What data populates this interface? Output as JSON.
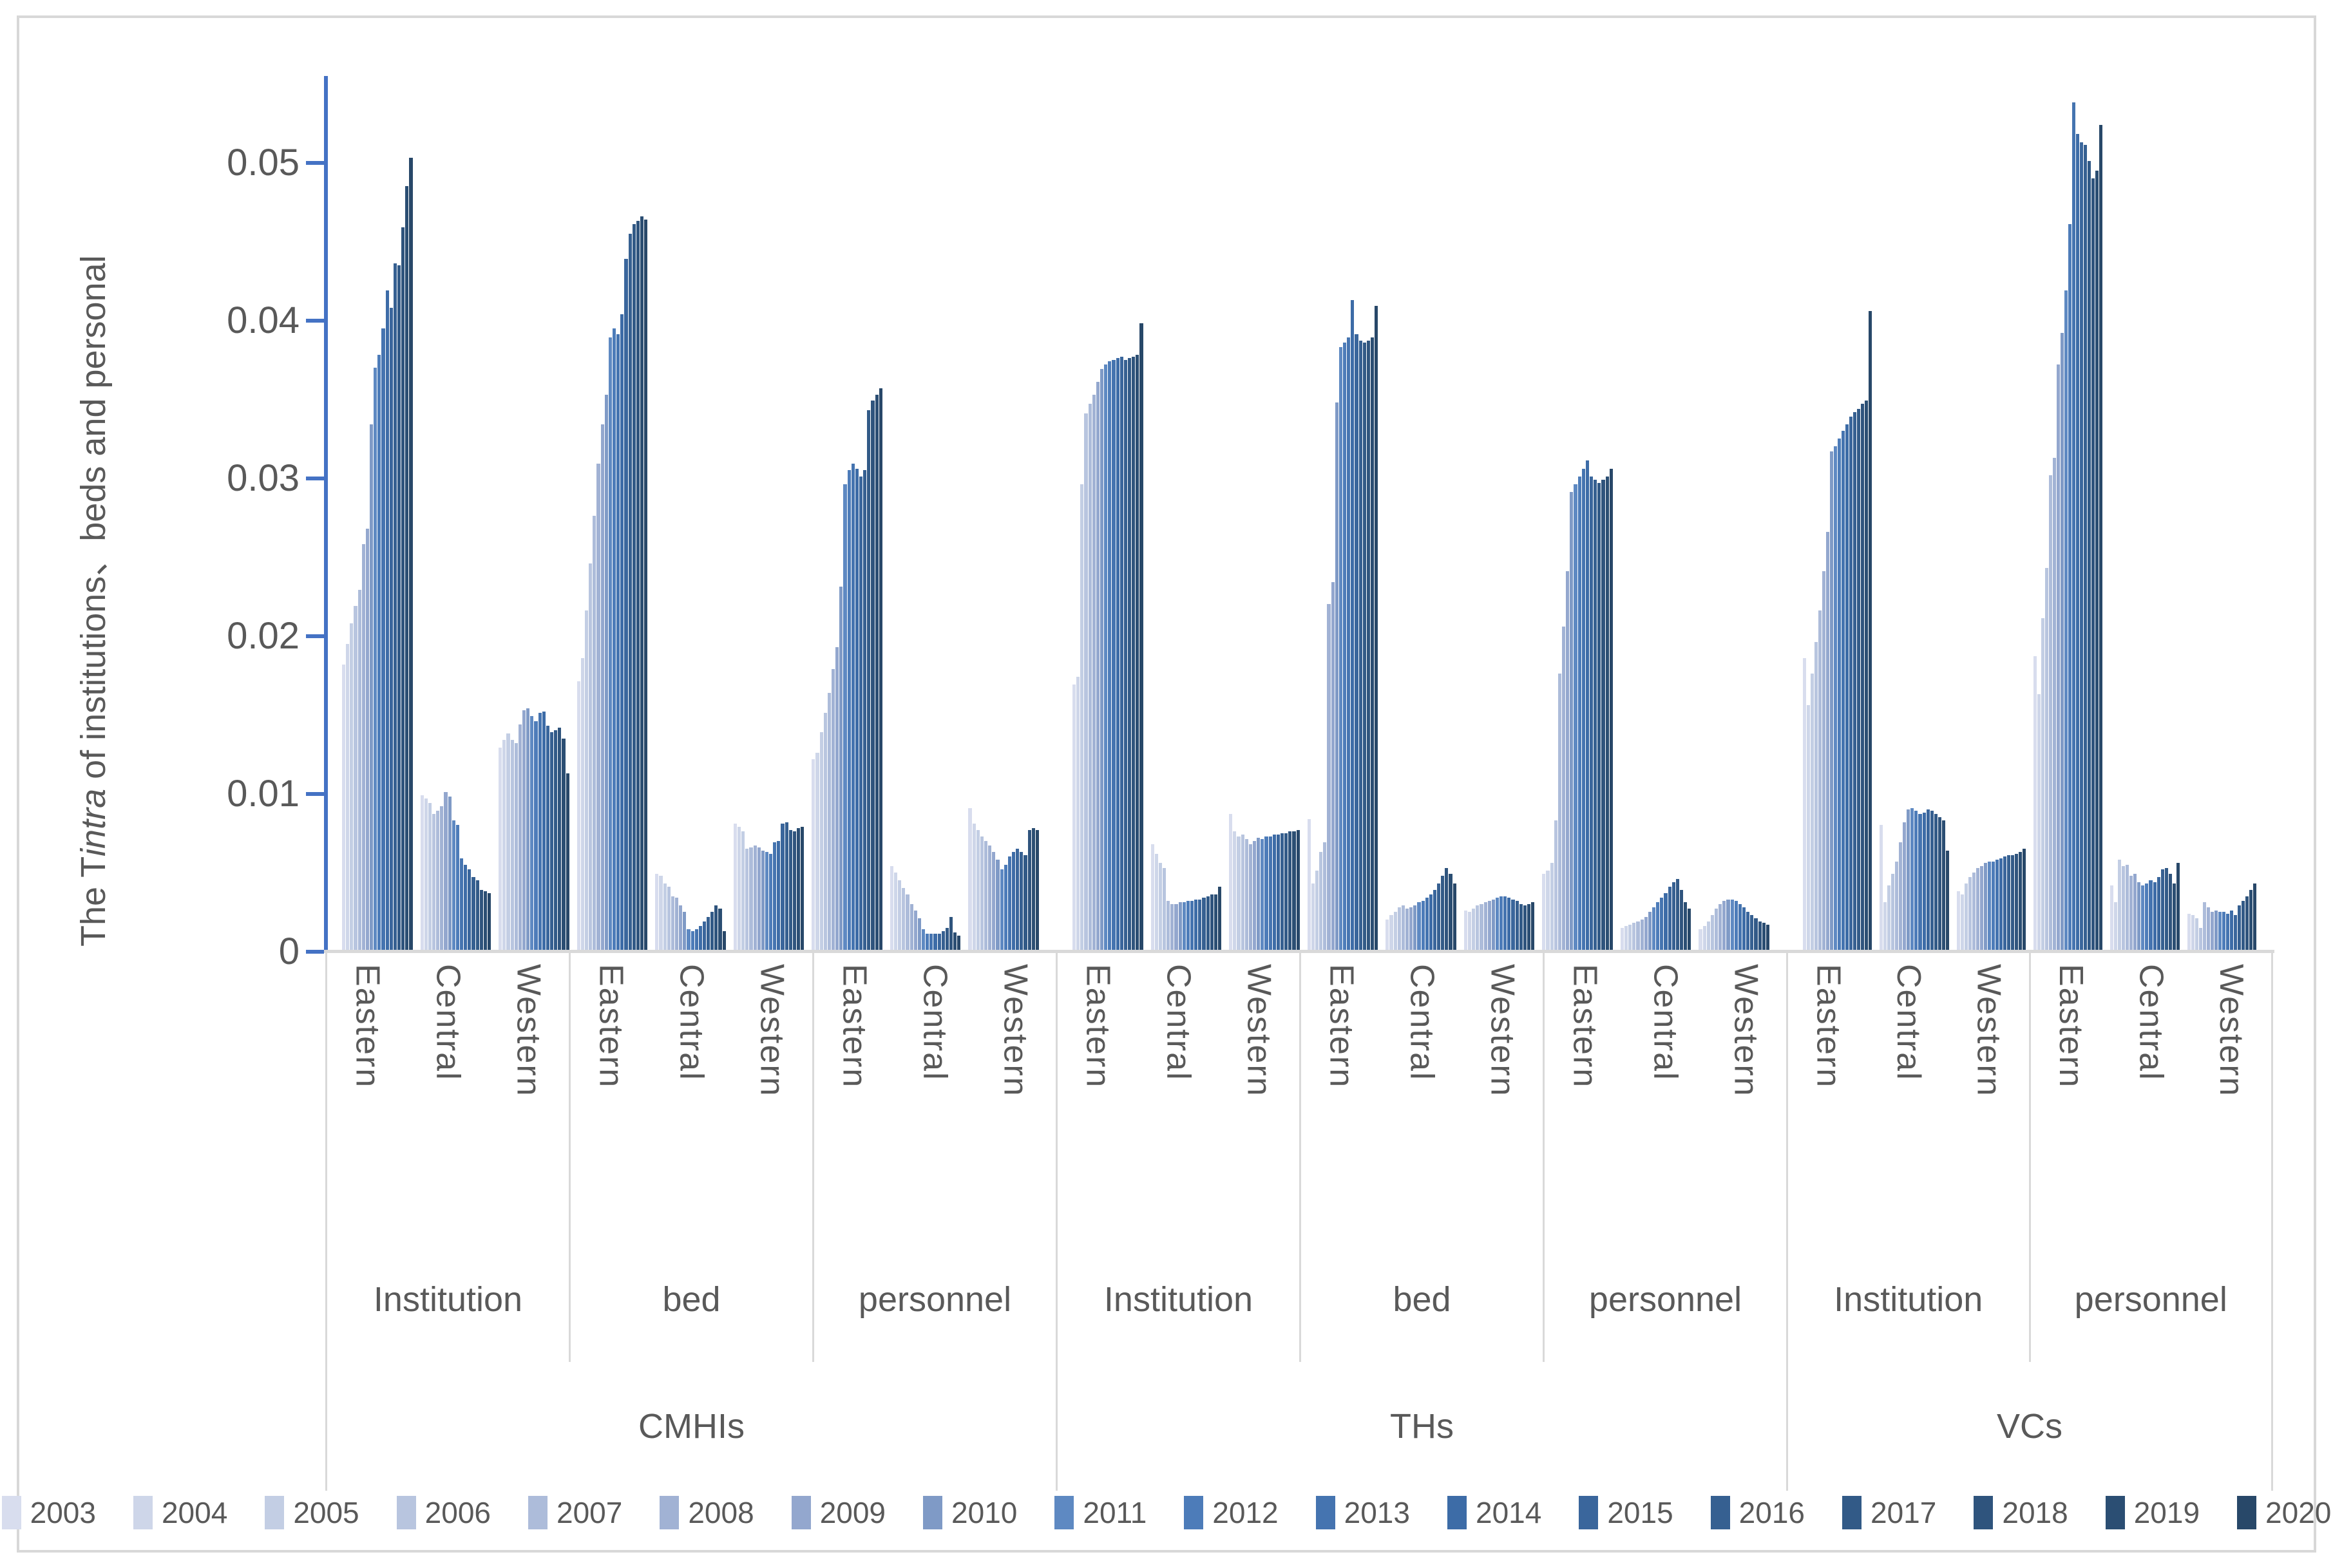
{
  "figure": {
    "kind": "grouped-bar-chart-figure",
    "border_color": "#D8D8D8",
    "axis_color": "#4472C4",
    "gridline_color": "#D9D9D9",
    "text_color": "#595959"
  },
  "y_axis": {
    "title_prefix": "The T",
    "title_italic": "intra",
    "title_suffix": " of institutions、beds and personal",
    "ticks": [
      {
        "value": 0,
        "label": "0"
      },
      {
        "value": 0.01,
        "label": "0.01"
      },
      {
        "value": 0.02,
        "label": "0.02"
      },
      {
        "value": 0.03,
        "label": "0.03"
      },
      {
        "value": 0.04,
        "label": "0.04"
      },
      {
        "value": 0.05,
        "label": "0.05"
      }
    ]
  },
  "chart_data": {
    "type": "bar",
    "title": "",
    "xlabel": "",
    "ylabel": "The Tintra of institutions、beds and personal",
    "ylim": [
      0,
      0.055
    ],
    "grid": false,
    "legend_position": "bottom",
    "series_labels": [
      "2003",
      "2004",
      "2005",
      "2006",
      "2007",
      "2008",
      "2009",
      "2010",
      "2011",
      "2012",
      "2013",
      "2014",
      "2015",
      "2016",
      "2017",
      "2018",
      "2019",
      "2020"
    ],
    "series_colors": [
      "#D8DDEE",
      "#CED6E9",
      "#C3CEE4",
      "#B8C5DF",
      "#ADBCDA",
      "#A1B2D4",
      "#93A7CE",
      "#7F9AC6",
      "#5E89C2",
      "#4D7CB9",
      "#4574B0",
      "#3D6CA7",
      "#3A669C",
      "#366091",
      "#325A87",
      "#2F547D",
      "#2B4E73",
      "#284869"
    ],
    "orgs": [
      {
        "name": "CMHIs",
        "types": [
          {
            "name": "Institution",
            "regions": [
              {
                "name": "Eastern",
                "values": [
                  0.0181,
                  0.0194,
                  0.0207,
                  0.0218,
                  0.0228,
                  0.0257,
                  0.0267,
                  0.0333,
                  0.0369,
                  0.0377,
                  0.0394,
                  0.0418,
                  0.0407,
                  0.0435,
                  0.0434,
                  0.0458,
                  0.0484,
                  0.0502
                ]
              },
              {
                "name": "Central",
                "values": [
                  0.0098,
                  0.0096,
                  0.0093,
                  0.0086,
                  0.0088,
                  0.0091,
                  0.01,
                  0.0097,
                  0.0082,
                  0.0079,
                  0.0058,
                  0.0054,
                  0.0051,
                  0.0046,
                  0.0044,
                  0.0038,
                  0.0037,
                  0.0036
                ]
              },
              {
                "name": "Western",
                "values": [
                  0.0128,
                  0.0133,
                  0.0137,
                  0.0133,
                  0.0131,
                  0.0143,
                  0.0152,
                  0.0153,
                  0.0148,
                  0.0145,
                  0.015,
                  0.0151,
                  0.0142,
                  0.0138,
                  0.0139,
                  0.0141,
                  0.0134,
                  0.0112
                ]
              }
            ]
          },
          {
            "name": "bed",
            "regions": [
              {
                "name": "Eastern",
                "values": [
                  0.017,
                  0.0185,
                  0.0215,
                  0.0245,
                  0.0275,
                  0.0308,
                  0.0333,
                  0.0352,
                  0.0388,
                  0.0394,
                  0.039,
                  0.0403,
                  0.0438,
                  0.0454,
                  0.046,
                  0.0462,
                  0.0465,
                  0.0463
                ]
              },
              {
                "name": "Central",
                "values": [
                  0.0048,
                  0.0047,
                  0.0042,
                  0.004,
                  0.0034,
                  0.0033,
                  0.0028,
                  0.0024,
                  0.0013,
                  0.0012,
                  0.0013,
                  0.0015,
                  0.0018,
                  0.0021,
                  0.0024,
                  0.0028,
                  0.0026,
                  0.0012
                ]
              },
              {
                "name": "Western",
                "values": [
                  0.008,
                  0.0078,
                  0.0075,
                  0.0064,
                  0.0065,
                  0.0066,
                  0.0065,
                  0.0063,
                  0.0062,
                  0.0061,
                  0.0068,
                  0.0069,
                  0.008,
                  0.0081,
                  0.0076,
                  0.0075,
                  0.0077,
                  0.0078
                ]
              }
            ]
          },
          {
            "name": "personnel",
            "regions": [
              {
                "name": "Eastern",
                "values": [
                  0.0121,
                  0.0125,
                  0.0138,
                  0.015,
                  0.0163,
                  0.0178,
                  0.0192,
                  0.023,
                  0.0295,
                  0.0304,
                  0.0308,
                  0.0305,
                  0.03,
                  0.0304,
                  0.0342,
                  0.0348,
                  0.0352,
                  0.0356
                ]
              },
              {
                "name": "Central",
                "values": [
                  0.0053,
                  0.0049,
                  0.0044,
                  0.0039,
                  0.0035,
                  0.0029,
                  0.0025,
                  0.002,
                  0.0013,
                  0.001,
                  0.001,
                  0.001,
                  0.001,
                  0.0012,
                  0.0014,
                  0.0021,
                  0.0011,
                  0.0009
                ]
              },
              {
                "name": "Western",
                "values": [
                  0.009,
                  0.008,
                  0.0076,
                  0.0072,
                  0.0069,
                  0.0066,
                  0.0062,
                  0.0057,
                  0.0051,
                  0.0054,
                  0.0059,
                  0.0062,
                  0.0064,
                  0.0062,
                  0.006,
                  0.0076,
                  0.0077,
                  0.0076
                ]
              }
            ]
          }
        ]
      },
      {
        "name": "THs",
        "types": [
          {
            "name": "Institution",
            "regions": [
              {
                "name": "Eastern",
                "values": [
                  0.0168,
                  0.0173,
                  0.0295,
                  0.034,
                  0.0346,
                  0.0352,
                  0.036,
                  0.0368,
                  0.0371,
                  0.0373,
                  0.0374,
                  0.0375,
                  0.0376,
                  0.0374,
                  0.0375,
                  0.0376,
                  0.0377,
                  0.0397
                ]
              },
              {
                "name": "Central",
                "values": [
                  0.0067,
                  0.0061,
                  0.0055,
                  0.0052,
                  0.0031,
                  0.0029,
                  0.0029,
                  0.003,
                  0.003,
                  0.0031,
                  0.0031,
                  0.0032,
                  0.0032,
                  0.0033,
                  0.0034,
                  0.0035,
                  0.0035,
                  0.004
                ]
              },
              {
                "name": "Western",
                "values": [
                  0.0086,
                  0.0075,
                  0.0072,
                  0.0073,
                  0.007,
                  0.0067,
                  0.0069,
                  0.0071,
                  0.007,
                  0.0072,
                  0.0072,
                  0.0073,
                  0.0073,
                  0.0074,
                  0.0074,
                  0.0075,
                  0.0075,
                  0.0076
                ]
              }
            ]
          },
          {
            "name": "bed",
            "regions": [
              {
                "name": "Eastern",
                "values": [
                  0.0083,
                  0.0042,
                  0.005,
                  0.0062,
                  0.0068,
                  0.0219,
                  0.0233,
                  0.0347,
                  0.0382,
                  0.0385,
                  0.0388,
                  0.0412,
                  0.039,
                  0.0386,
                  0.0385,
                  0.0386,
                  0.0388,
                  0.0408
                ]
              },
              {
                "name": "Central",
                "values": [
                  0.0019,
                  0.0022,
                  0.0024,
                  0.0027,
                  0.0028,
                  0.0026,
                  0.0027,
                  0.0028,
                  0.003,
                  0.0031,
                  0.0033,
                  0.0035,
                  0.0038,
                  0.0042,
                  0.0047,
                  0.0052,
                  0.0048,
                  0.0042
                ]
              },
              {
                "name": "Western",
                "values": [
                  0.0025,
                  0.0024,
                  0.0026,
                  0.0028,
                  0.0029,
                  0.003,
                  0.0031,
                  0.0032,
                  0.0033,
                  0.0034,
                  0.0034,
                  0.0033,
                  0.0032,
                  0.0031,
                  0.0029,
                  0.0028,
                  0.0029,
                  0.003
                ]
              }
            ]
          },
          {
            "name": "personnel",
            "regions": [
              {
                "name": "Eastern",
                "values": [
                  0.0048,
                  0.005,
                  0.0055,
                  0.0082,
                  0.0175,
                  0.0205,
                  0.024,
                  0.029,
                  0.0295,
                  0.03,
                  0.0305,
                  0.031,
                  0.03,
                  0.0298,
                  0.0296,
                  0.0298,
                  0.03,
                  0.0305
                ]
              },
              {
                "name": "Central",
                "values": [
                  0.0014,
                  0.0015,
                  0.0016,
                  0.0017,
                  0.0018,
                  0.0019,
                  0.0021,
                  0.0024,
                  0.0027,
                  0.003,
                  0.0033,
                  0.0036,
                  0.004,
                  0.0043,
                  0.0045,
                  0.0038,
                  0.003,
                  0.0026
                ]
              },
              {
                "name": "Western",
                "values": [
                  0.0013,
                  0.0015,
                  0.0018,
                  0.0022,
                  0.0026,
                  0.0029,
                  0.0031,
                  0.0032,
                  0.0032,
                  0.0031,
                  0.0029,
                  0.0027,
                  0.0024,
                  0.0022,
                  0.002,
                  0.0018,
                  0.0017,
                  0.0016
                ]
              }
            ]
          }
        ]
      },
      {
        "name": "VCs",
        "types": [
          {
            "name": "Institution",
            "regions": [
              {
                "name": "Eastern",
                "values": [
                  0.0185,
                  0.0155,
                  0.0175,
                  0.0195,
                  0.0215,
                  0.024,
                  0.0265,
                  0.0316,
                  0.0319,
                  0.0324,
                  0.0329,
                  0.0333,
                  0.0338,
                  0.0341,
                  0.0343,
                  0.0346,
                  0.0348,
                  0.0405
                ]
              },
              {
                "name": "Central",
                "values": [
                  0.0079,
                  0.003,
                  0.0041,
                  0.0048,
                  0.0056,
                  0.0068,
                  0.0081,
                  0.0089,
                  0.009,
                  0.0088,
                  0.0086,
                  0.0087,
                  0.0089,
                  0.0088,
                  0.0086,
                  0.0084,
                  0.0082,
                  0.0063
                ]
              },
              {
                "name": "Western",
                "values": [
                  0.0037,
                  0.0035,
                  0.0042,
                  0.0046,
                  0.0049,
                  0.0052,
                  0.0053,
                  0.0055,
                  0.0056,
                  0.0056,
                  0.0057,
                  0.0058,
                  0.0059,
                  0.006,
                  0.006,
                  0.0061,
                  0.0062,
                  0.0064
                ]
              }
            ]
          },
          {
            "name": "personnel",
            "regions": [
              {
                "name": "Eastern",
                "values": [
                  0.0186,
                  0.0162,
                  0.021,
                  0.0242,
                  0.0301,
                  0.0312,
                  0.0371,
                  0.0391,
                  0.0418,
                  0.046,
                  0.0537,
                  0.0517,
                  0.0512,
                  0.051,
                  0.05,
                  0.0489,
                  0.0494,
                  0.0523
                ]
              },
              {
                "name": "Central",
                "values": [
                  0.0041,
                  0.003,
                  0.0057,
                  0.0053,
                  0.0054,
                  0.0047,
                  0.0048,
                  0.0043,
                  0.0041,
                  0.0042,
                  0.0044,
                  0.0043,
                  0.0046,
                  0.0051,
                  0.0052,
                  0.0048,
                  0.0042,
                  0.0055
                ]
              },
              {
                "name": "Western",
                "values": [
                  0.0023,
                  0.0022,
                  0.002,
                  0.0014,
                  0.003,
                  0.0027,
                  0.0024,
                  0.0025,
                  0.0024,
                  0.0024,
                  0.0023,
                  0.0025,
                  0.0022,
                  0.0028,
                  0.0031,
                  0.0034,
                  0.0038,
                  0.0042
                ]
              }
            ]
          }
        ]
      }
    ]
  },
  "legend": {
    "items": [
      {
        "label": "2003",
        "color": "#D8DDEE"
      },
      {
        "label": "2004",
        "color": "#CED6E9"
      },
      {
        "label": "2005",
        "color": "#C3CEE4"
      },
      {
        "label": "2006",
        "color": "#B8C5DF"
      },
      {
        "label": "2007",
        "color": "#ADBCDA"
      },
      {
        "label": "2008",
        "color": "#A1B2D4"
      },
      {
        "label": "2009",
        "color": "#93A7CE"
      },
      {
        "label": "2010",
        "color": "#7F9AC6"
      },
      {
        "label": "2011",
        "color": "#5E89C2"
      },
      {
        "label": "2012",
        "color": "#4D7CB9"
      },
      {
        "label": "2013",
        "color": "#4574B0"
      },
      {
        "label": "2014",
        "color": "#3D6CA7"
      },
      {
        "label": "2015",
        "color": "#3A669C"
      },
      {
        "label": "2016",
        "color": "#366091"
      },
      {
        "label": "2017",
        "color": "#325A87"
      },
      {
        "label": "2018",
        "color": "#2F547D"
      },
      {
        "label": "2019",
        "color": "#2B4E73"
      },
      {
        "label": "2020",
        "color": "#284869"
      }
    ]
  }
}
